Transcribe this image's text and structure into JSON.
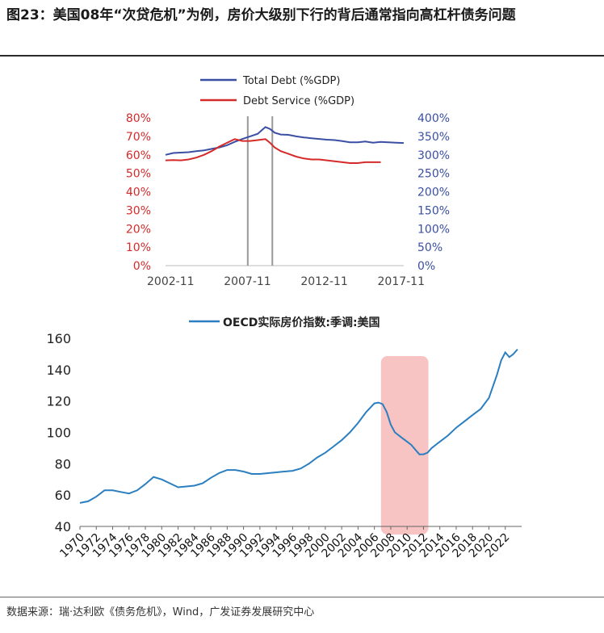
{
  "figure_title": "图23：美国08年“次贷危机”为例，房价大级别下行的背后通常指向高杠杆债务问题",
  "source_text": "数据来源：瑞·达利欧《债务危机》，Wind，广发证券发展研究中心",
  "colors": {
    "total_debt": "#3a4fa3",
    "debt_service": "#d42a2a",
    "oecd": "#2b7fc0",
    "shade": "#f7b8b8",
    "left_axis": "#d42a2a",
    "right_axis": "#3a4fa3"
  },
  "chart_data": [
    {
      "type": "line",
      "title": "",
      "legend_position": "top",
      "x_ticks": [
        "2002-11",
        "2007-11",
        "2012-11",
        "2017-11"
      ],
      "xlim": [
        2002.5,
        2018.0
      ],
      "left_ticks": [
        "80%",
        "70%",
        "60%",
        "50%",
        "40%",
        "30%",
        "20%",
        "10%",
        "0%"
      ],
      "right_ticks": [
        "400%",
        "350%",
        "300%",
        "250%",
        "200%",
        "150%",
        "100%",
        "50%",
        "0%"
      ],
      "ylim_left": [
        0,
        80
      ],
      "ylim_right": [
        0,
        400
      ],
      "vertical_markers": [
        2007.85,
        2009.45
      ],
      "series": [
        {
          "name": "Total Debt (%GDP)",
          "axis": "right",
          "x": [
            2002.5,
            2003.0,
            2003.5,
            2004.0,
            2004.5,
            2005.0,
            2005.5,
            2006.0,
            2006.5,
            2007.0,
            2007.5,
            2008.0,
            2008.5,
            2008.8,
            2009.0,
            2009.3,
            2009.6,
            2010.0,
            2010.5,
            2011.0,
            2011.5,
            2012.0,
            2012.5,
            2013.0,
            2013.5,
            2014.0,
            2014.5,
            2015.0,
            2015.5,
            2016.0,
            2016.5,
            2017.0,
            2017.5,
            2018.0
          ],
          "y": [
            300,
            305,
            306,
            307,
            310,
            312,
            316,
            320,
            326,
            335,
            343,
            350,
            357,
            368,
            375,
            370,
            360,
            355,
            354,
            350,
            347,
            345,
            343,
            341,
            340,
            337,
            334,
            334,
            336,
            333,
            335,
            334,
            333,
            332
          ]
        },
        {
          "name": "Debt Service (%GDP)",
          "axis": "left",
          "x": [
            2002.5,
            2003.0,
            2003.5,
            2004.0,
            2004.5,
            2005.0,
            2005.5,
            2006.0,
            2006.5,
            2007.0,
            2007.5,
            2008.0,
            2008.5,
            2009.0,
            2009.3,
            2009.6,
            2010.0,
            2010.5,
            2011.0,
            2011.5,
            2012.0,
            2012.5,
            2013.0,
            2013.5,
            2014.0,
            2014.5,
            2015.0,
            2015.5,
            2016.0,
            2016.5
          ],
          "y": [
            57,
            57.2,
            57,
            57.5,
            58.5,
            60,
            62,
            64.5,
            66.5,
            68.5,
            67.5,
            67.5,
            68,
            68.5,
            66.5,
            64,
            62,
            60.5,
            59,
            58,
            57.5,
            57.5,
            57,
            56.5,
            56,
            55.5,
            55.5,
            56,
            56,
            56
          ]
        }
      ]
    },
    {
      "type": "line",
      "title": "",
      "legend_position": "top",
      "x_ticks": [
        "1970",
        "1972",
        "1974",
        "1976",
        "1978",
        "1980",
        "1982",
        "1984",
        "1986",
        "1988",
        "1990",
        "1992",
        "1994",
        "1996",
        "1998",
        "2000",
        "2002",
        "2004",
        "2006",
        "2008",
        "2010",
        "2012",
        "2014",
        "2016",
        "2018",
        "2020",
        "2022"
      ],
      "xlim": [
        1970,
        2024
      ],
      "y_ticks": [
        "160",
        "140",
        "120",
        "100",
        "80",
        "60",
        "40"
      ],
      "ylim": [
        40,
        160
      ],
      "shaded_range": [
        2006.8,
        2012.6
      ],
      "series": [
        {
          "name": "OECD实际房价指数:季调:美国",
          "x": [
            1970,
            1971,
            1972,
            1973,
            1974,
            1975,
            1976,
            1977,
            1978,
            1979,
            1980,
            1981,
            1982,
            1983,
            1984,
            1985,
            1986,
            1987,
            1988,
            1989,
            1990,
            1991,
            1992,
            1993,
            1994,
            1995,
            1996,
            1997,
            1998,
            1999,
            2000,
            2001,
            2002,
            2003,
            2004,
            2005,
            2006,
            2006.5,
            2007,
            2007.5,
            2008,
            2008.5,
            2009,
            2009.5,
            2010,
            2010.5,
            2011,
            2011.5,
            2012,
            2012.5,
            2013,
            2013.5,
            2014,
            2015,
            2016,
            2017,
            2018,
            2019,
            2020,
            2021,
            2021.5,
            2022,
            2022.5,
            2023,
            2023.5
          ],
          "y": [
            55,
            56,
            59,
            63,
            63,
            62,
            61,
            63,
            67,
            71.5,
            70,
            67.5,
            65,
            65.5,
            66,
            67.5,
            71,
            74,
            76,
            76,
            75,
            73.5,
            73.5,
            74,
            74.5,
            75,
            75.5,
            77,
            80,
            84,
            87,
            91,
            95,
            100,
            106,
            113,
            118.5,
            119,
            118,
            113,
            105,
            100,
            98,
            96,
            94,
            92,
            89,
            86,
            86,
            87,
            90,
            92,
            94,
            98,
            103,
            107,
            111,
            115,
            122,
            137,
            146,
            151,
            148,
            150,
            153
          ]
        }
      ]
    }
  ]
}
